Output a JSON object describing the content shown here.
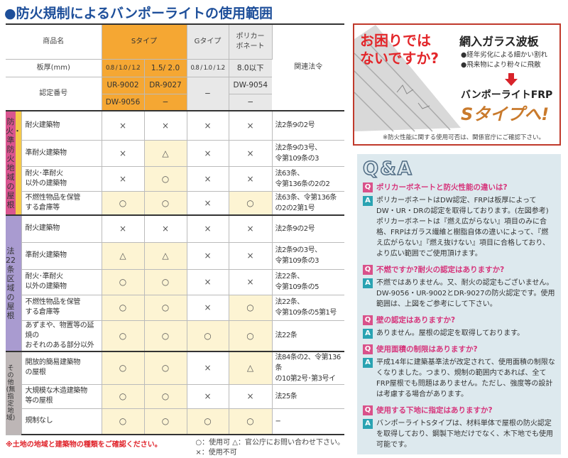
{
  "title": "●防火規制によるバンポーライトの使用範囲",
  "header": {
    "product_label": "商品名",
    "s_type": "Sタイプ",
    "g_type": "Gタイプ",
    "pc": "ポリカー\nボネート",
    "thickness_label": "板厚(mm)",
    "thickness": [
      "0.8 / 1.0 / 1.2",
      "1.5/ 2.0",
      "0.8 / 1.0 / 1.2",
      "8.0以下"
    ],
    "law_label": "関連法令",
    "cert_label": "認定番号",
    "cert_s1a": "UR-9002",
    "cert_s2a": "DR-9027",
    "cert_g": "−",
    "cert_pca": "DW-9054",
    "cert_s1b": "DW-9056",
    "cert_s2b": "−",
    "cert_pcb": "−"
  },
  "groups": [
    {
      "label": "防火・準防火地域の屋根",
      "color": "#d9558f",
      "stripe": "#f5c94a",
      "rows": [
        {
          "name": "耐火建築物",
          "values": [
            "×",
            "×",
            "×",
            "×"
          ],
          "law": "法2条9の2号"
        },
        {
          "name": "準耐火建築物",
          "values": [
            "×",
            "△",
            "×",
            "×"
          ],
          "law": "法2条9の3号、\n令第109条の3"
        },
        {
          "name": "耐火･準耐火\n以外の建築物",
          "values": [
            "×",
            "○",
            "×",
            "×"
          ],
          "law": "法63条、\n令第136条の2の2"
        },
        {
          "name": "不燃性物品を保管\nする倉庫等",
          "values": [
            "○",
            "○",
            "×",
            "○"
          ],
          "law": "法63条、令第136条\nの2の2第1号"
        }
      ]
    },
    {
      "label": "法22条区域の屋根",
      "color": "#a99bd0",
      "stripe": "#a99bd0",
      "rows": [
        {
          "name": "耐火建築物",
          "values": [
            "×",
            "×",
            "×",
            "×"
          ],
          "law": "法2条9の2号"
        },
        {
          "name": "準耐火建築物",
          "values": [
            "△",
            "△",
            "×",
            "×"
          ],
          "law": "法2条9の3号、\n令第109条の3"
        },
        {
          "name": "耐火･準耐火\n以外の建築物",
          "values": [
            "○",
            "○",
            "×",
            "×"
          ],
          "law": "法22条、\n令第109条の5"
        },
        {
          "name": "不燃性物品を保管\nする倉庫等",
          "values": [
            "○",
            "○",
            "×",
            "○"
          ],
          "law": "法22条、\n令第109条の5第1号"
        },
        {
          "name": "あずまや、物置等の延焼の\nおそれのある部分以外",
          "values": [
            "○",
            "○",
            "○",
            "○"
          ],
          "law": "法22条"
        }
      ]
    },
    {
      "label": "その他(無指定地域)",
      "color": "#bdb6b6",
      "stripe": "#bdb6b6",
      "rows": [
        {
          "name": "開放的簡易建築物\nの屋根",
          "values": [
            "○",
            "○",
            "×",
            "△"
          ],
          "law": "法84条の2、令第136条\nの10第2号･第3号イ"
        },
        {
          "name": "大規模な木造建築物\n等の屋根",
          "values": [
            "○",
            "○",
            "×",
            "×"
          ],
          "law": "法25条"
        },
        {
          "name": "規制なし",
          "values": [
            "○",
            "○",
            "○",
            "○"
          ],
          "law": "−"
        }
      ]
    }
  ],
  "footer": {
    "note": "※土地の地域と建築物の種類をご確認ください。",
    "legend_ok": "○：使用可",
    "legend_ask": "△：官公庁にお問い合わせ下さい。",
    "legend_ng": "×：使用不可"
  },
  "ad": {
    "question": "お困りでは\nないですか?",
    "heading": "網入ガラス波板",
    "bullets": [
      "●経年劣化による細かい割れ",
      "●飛来物により粉々に飛散"
    ],
    "product": "バンポーライトFRP",
    "stype": "Sタイプへ!",
    "footnote": "※防火性能に関する使用可否は、関係官庁にご確認下さい。"
  },
  "qa": {
    "title": "Q&A",
    "q_icon": "Q",
    "a_icon": "A",
    "items": [
      {
        "q": "ポリカーボネートと防火性能の違いは?",
        "a": "ポリカーボネートはDW認定、FRPは板厚によってDW・UR・DRの認定を取得しております。(左図参考)ポリカーボネートは『燃え広がらない』項目のみに合格、FRPはガラス繊維と樹脂自体の違いによって、『燃え広がらない』『燃え抜けない』項目に合格しており、より広い範囲でご使用頂けます。"
      },
      {
        "q": "不燃ですか?耐火の認定はありますか?",
        "a": "不燃ではありません。又、耐火の認定もございません。DW-9056・UR-9002とDR-9027の防火認定です。使用範囲は、上図をご参考にして下さい。"
      },
      {
        "q": "壁の認定はありますか?",
        "a": "ありません。屋根の認定を取得しております。"
      },
      {
        "q": "使用面積の制限はありますか?",
        "a": "平成14年に建築基準法が改定されて、使用面積の制限なくなりました。つまり、規制の範囲内であれば、全てFRP屋根でも問題はありません。ただし、強度等の設計は考慮する場合があります。"
      },
      {
        "q": "使用する下地に指定はありますか?",
        "a": "バンポーライトSタイプは、材料単体で屋根の防火認定を取得しており、鋼製下地だけでなく、木下地でも使用可能です。"
      }
    ]
  }
}
